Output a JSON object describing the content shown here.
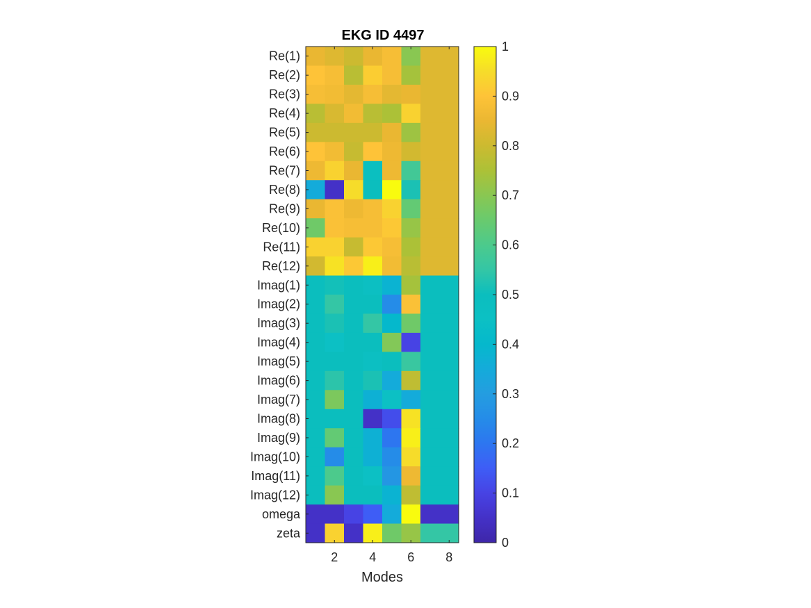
{
  "chart_data": {
    "type": "heatmap",
    "title": "EKG ID 4497",
    "xlabel": "Modes",
    "ylabel": "",
    "x_ticks": [
      2,
      4,
      6,
      8
    ],
    "x_range": [
      0.5,
      8.5
    ],
    "row_labels": [
      "Re(1)",
      "Re(2)",
      "Re(3)",
      "Re(4)",
      "Re(5)",
      "Re(6)",
      "Re(7)",
      "Re(8)",
      "Re(9)",
      "Re(10)",
      "Re(11)",
      "Re(12)",
      "Imag(1)",
      "Imag(2)",
      "Imag(3)",
      "Imag(4)",
      "Imag(5)",
      "Imag(6)",
      "Imag(7)",
      "Imag(8)",
      "Imag(9)",
      "Imag(10)",
      "Imag(11)",
      "Imag(12)",
      "omega",
      "zeta"
    ],
    "columns": [
      1,
      2,
      3,
      4,
      5,
      6,
      7,
      8
    ],
    "values": [
      [
        0.85,
        0.83,
        0.8,
        0.85,
        0.88,
        0.7,
        0.83,
        0.83
      ],
      [
        0.9,
        0.88,
        0.77,
        0.92,
        0.88,
        0.74,
        0.83,
        0.83
      ],
      [
        0.88,
        0.87,
        0.84,
        0.88,
        0.84,
        0.85,
        0.83,
        0.83
      ],
      [
        0.77,
        0.82,
        0.87,
        0.77,
        0.75,
        0.93,
        0.83,
        0.83
      ],
      [
        0.8,
        0.8,
        0.8,
        0.8,
        0.85,
        0.73,
        0.83,
        0.83
      ],
      [
        0.9,
        0.87,
        0.79,
        0.9,
        0.86,
        0.81,
        0.83,
        0.83
      ],
      [
        0.86,
        0.93,
        0.85,
        0.48,
        0.86,
        0.58,
        0.83,
        0.83
      ],
      [
        0.35,
        0.05,
        0.95,
        0.5,
        1.0,
        0.52,
        0.83,
        0.83
      ],
      [
        0.85,
        0.89,
        0.86,
        0.88,
        0.93,
        0.64,
        0.83,
        0.83
      ],
      [
        0.66,
        0.89,
        0.88,
        0.88,
        0.91,
        0.72,
        0.83,
        0.83
      ],
      [
        0.93,
        0.93,
        0.79,
        0.91,
        0.88,
        0.75,
        0.83,
        0.83
      ],
      [
        0.81,
        0.96,
        0.91,
        0.98,
        0.87,
        0.77,
        0.83,
        0.83
      ],
      [
        0.5,
        0.51,
        0.5,
        0.47,
        0.38,
        0.74,
        0.5,
        0.5
      ],
      [
        0.5,
        0.55,
        0.5,
        0.5,
        0.25,
        0.89,
        0.5,
        0.5
      ],
      [
        0.5,
        0.52,
        0.5,
        0.55,
        0.4,
        0.66,
        0.5,
        0.5
      ],
      [
        0.5,
        0.45,
        0.5,
        0.5,
        0.69,
        0.1,
        0.5,
        0.5
      ],
      [
        0.5,
        0.5,
        0.5,
        0.47,
        0.5,
        0.56,
        0.5,
        0.5
      ],
      [
        0.5,
        0.54,
        0.5,
        0.52,
        0.35,
        0.78,
        0.5,
        0.5
      ],
      [
        0.5,
        0.68,
        0.5,
        0.37,
        0.45,
        0.35,
        0.5,
        0.5
      ],
      [
        0.5,
        0.5,
        0.5,
        0.05,
        0.12,
        0.96,
        0.5,
        0.5
      ],
      [
        0.5,
        0.64,
        0.5,
        0.37,
        0.2,
        0.98,
        0.5,
        0.5
      ],
      [
        0.5,
        0.25,
        0.5,
        0.37,
        0.25,
        0.95,
        0.5,
        0.5
      ],
      [
        0.5,
        0.6,
        0.5,
        0.45,
        0.28,
        0.86,
        0.5,
        0.5
      ],
      [
        0.5,
        0.7,
        0.5,
        0.5,
        0.38,
        0.78,
        0.5,
        0.5
      ],
      [
        0.05,
        0.05,
        0.1,
        0.15,
        0.35,
        1.0,
        0.05,
        0.05
      ],
      [
        0.05,
        0.93,
        0.05,
        0.98,
        0.66,
        0.72,
        0.55,
        0.55
      ]
    ],
    "colormap": "parula",
    "color_range": [
      0,
      1
    ],
    "colorbar_ticks": [
      0,
      0.1,
      0.2,
      0.3,
      0.4,
      0.5,
      0.6,
      0.7,
      0.8,
      0.9,
      1
    ],
    "colorbar_tick_labels": [
      "0",
      "0.1",
      "0.2",
      "0.3",
      "0.4",
      "0.5",
      "0.6",
      "0.7",
      "0.8",
      "0.9",
      "1"
    ],
    "grid": false,
    "legend": "colorbar-right"
  }
}
